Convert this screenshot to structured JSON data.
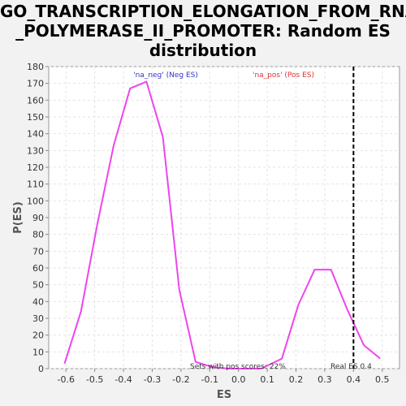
{
  "chart_data": {
    "type": "line",
    "title_lines": [
      "GO_TRANSCRIPTION_ELONGATION_FROM_RNA",
      "_POLYMERASE_II_PROMOTER: Random ES",
      "distribution"
    ],
    "xlabel": "ES",
    "ylabel": "P(ES)",
    "xlim": [
      -0.66,
      0.56
    ],
    "ylim": [
      0,
      180
    ],
    "x_ticks": [
      -0.6,
      -0.5,
      -0.4,
      -0.3,
      -0.2,
      -0.1,
      0.0,
      0.1,
      0.2,
      0.3,
      0.4,
      0.5
    ],
    "x_tick_labels": [
      "-0.6",
      "-0.5",
      "-0.4",
      "-0.3",
      "-0.2",
      "-0.1",
      "0.0",
      "0.1",
      "0.2",
      "0.3",
      "0.4",
      "0.5"
    ],
    "y_ticks": [
      0,
      10,
      20,
      30,
      40,
      50,
      60,
      70,
      80,
      90,
      100,
      110,
      120,
      130,
      140,
      150,
      160,
      170,
      180
    ],
    "grid": true,
    "series": [
      {
        "color": "#ee44ee",
        "x": [
          -0.605,
          -0.548,
          -0.491,
          -0.434,
          -0.377,
          -0.32,
          -0.263,
          -0.206,
          -0.149,
          -0.092,
          -0.035,
          0.022,
          0.079,
          0.151,
          0.208,
          0.265,
          0.322,
          0.379,
          0.436,
          0.493
        ],
        "y": [
          3,
          34,
          86,
          133,
          167,
          171,
          138,
          47,
          4,
          1,
          0,
          0,
          0,
          6,
          38,
          59,
          59,
          35,
          14,
          6
        ]
      }
    ],
    "vline": {
      "x": 0.4,
      "style": "dashed"
    },
    "annotations": {
      "neg": {
        "text": "'na_neg' (Neg ES)",
        "color": "#3333cc"
      },
      "pos": {
        "text": "'na_pos' (Pos ES)",
        "color": "#e03030"
      },
      "pos_scores": {
        "text": "Sets with pos scores: 22%"
      },
      "real_es": {
        "text": "Real ES 0.4"
      }
    }
  }
}
